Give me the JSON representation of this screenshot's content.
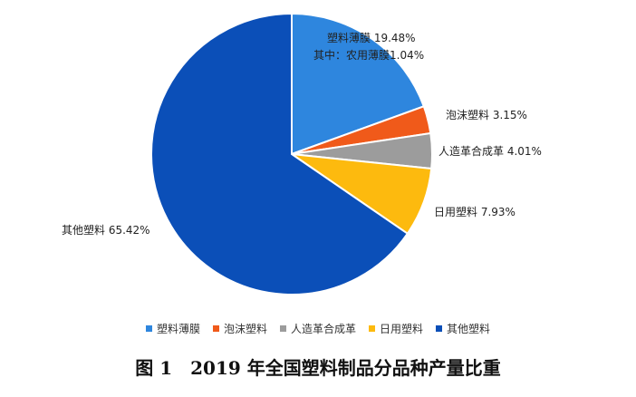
{
  "chart_data": {
    "type": "pie",
    "title": "图 1　2019 年全国塑料制品分品种产量比重",
    "start_angle_deg": 0,
    "direction": "clockwise",
    "legend_position": "bottom",
    "slices": [
      {
        "label": "塑料薄膜",
        "value": 19.48,
        "data_label": "塑料薄膜 19.48%",
        "sub_label": "其中：农用薄膜1.04%",
        "color": "#2E86DE"
      },
      {
        "label": "泡沫塑料",
        "value": 3.15,
        "data_label": "泡沫塑料 3.15%",
        "color": "#F05A1A"
      },
      {
        "label": "人造革合成革",
        "value": 4.01,
        "data_label": "人造革合成革 4.01%",
        "color": "#9C9C9C"
      },
      {
        "label": "日用塑料",
        "value": 7.93,
        "data_label": "日用塑料 7.93%",
        "color": "#FDBA0E"
      },
      {
        "label": "其他塑料",
        "value": 65.42,
        "data_label": "其他塑料 65.42%",
        "color": "#0B4FB8"
      }
    ]
  }
}
